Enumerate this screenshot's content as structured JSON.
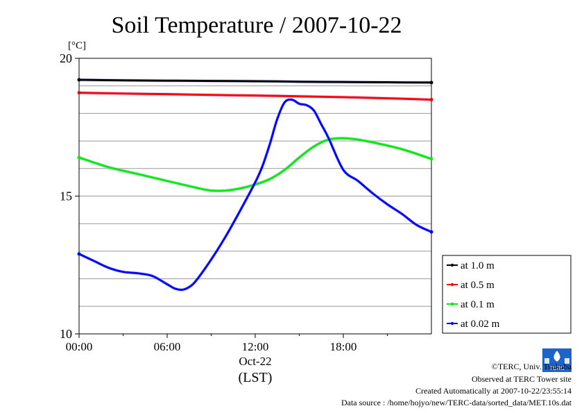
{
  "chart_data": {
    "type": "line",
    "title": "Soil Temperature / 2007-10-22",
    "ylabel": "[°C]",
    "xlabel": "(LST)",
    "date_label": "Oct-22",
    "ylim": [
      10,
      20
    ],
    "xlim": [
      0,
      24
    ],
    "y_ticks": [
      "20",
      "15",
      "10"
    ],
    "x_ticks": [
      "00:00",
      "06:00",
      "12:00",
      "18:00"
    ],
    "grid": true,
    "legend_position": "lower-right outside",
    "series": [
      {
        "name": "at 1.0 m",
        "color": "#000000",
        "x": [
          0,
          3,
          6,
          9,
          12,
          15,
          18,
          21,
          24
        ],
        "y": [
          19.22,
          19.2,
          19.19,
          19.18,
          19.17,
          19.15,
          19.14,
          19.13,
          19.12
        ]
      },
      {
        "name": "at 0.5 m",
        "color": "#ff0000",
        "x": [
          0,
          3,
          6,
          9,
          12,
          15,
          18,
          21,
          24
        ],
        "y": [
          18.75,
          18.72,
          18.7,
          18.67,
          18.65,
          18.62,
          18.59,
          18.55,
          18.5
        ]
      },
      {
        "name": "at 0.1 m",
        "color": "#00ee00",
        "x": [
          0,
          2,
          4,
          6,
          8,
          9,
          10,
          11,
          12,
          13,
          14,
          15,
          16,
          17,
          18,
          19,
          20,
          22,
          24
        ],
        "y": [
          16.4,
          16.05,
          15.8,
          15.55,
          15.3,
          15.2,
          15.2,
          15.28,
          15.42,
          15.62,
          15.95,
          16.4,
          16.8,
          17.05,
          17.1,
          17.05,
          16.95,
          16.7,
          16.35
        ]
      },
      {
        "name": "at 0.02 m",
        "color": "#0000ff",
        "x": [
          0,
          1,
          2,
          3,
          4,
          5,
          6,
          6.5,
          7,
          7.5,
          8,
          9,
          10,
          11,
          12,
          12.5,
          13,
          13.5,
          14,
          14.5,
          15,
          15.5,
          16,
          16.5,
          17,
          18,
          19,
          20,
          21,
          22,
          23,
          24
        ],
        "y": [
          12.9,
          12.65,
          12.4,
          12.25,
          12.2,
          12.1,
          11.8,
          11.65,
          11.6,
          11.7,
          11.95,
          12.7,
          13.55,
          14.5,
          15.5,
          16.1,
          16.9,
          17.8,
          18.4,
          18.5,
          18.35,
          18.3,
          18.1,
          17.6,
          17.1,
          15.95,
          15.55,
          15.1,
          14.7,
          14.35,
          13.95,
          13.7
        ]
      }
    ]
  },
  "credits": {
    "copyright": "©TERC, Univ. Tsukuba",
    "observed": "Observed at TERC Tower site",
    "created": "Created Automatically at 2007-10-22/23:55:14",
    "source": "Data source : /home/hojyo/new/TERC-data/sorted_data/MET.10s.dat",
    "logo_text": "TERC"
  }
}
